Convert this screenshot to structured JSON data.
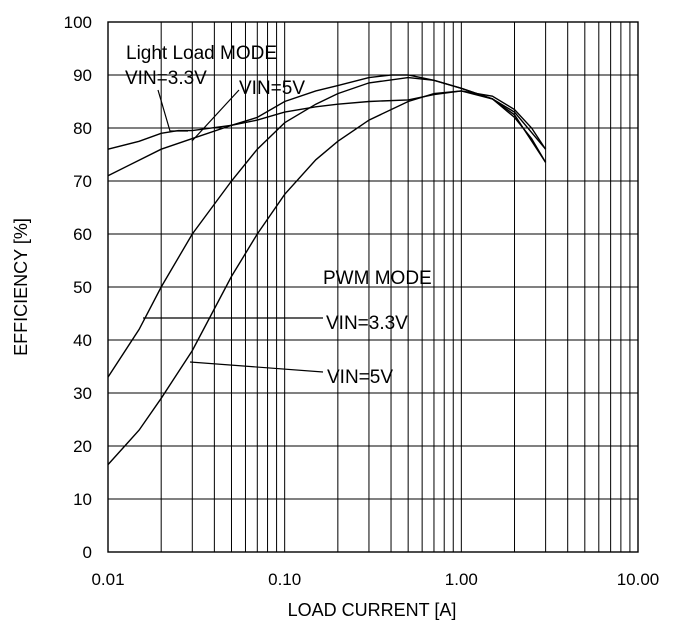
{
  "chart_data": {
    "type": "line",
    "title": "",
    "xlabel": "LOAD CURRENT [A]",
    "ylabel": "EFFICIENCY [%]",
    "xscale": "log",
    "xlim": [
      0.01,
      10
    ],
    "ylim": [
      0,
      100
    ],
    "grid": true,
    "x_tick_labels": [
      "0.01",
      "0.10",
      "1.00",
      "10.00"
    ],
    "y_tick_labels": [
      "0",
      "10",
      "20",
      "30",
      "40",
      "50",
      "60",
      "70",
      "80",
      "90",
      "100"
    ],
    "annotations": [
      {
        "id": "lightload",
        "text": "Light Load MODE"
      },
      {
        "id": "ll33",
        "text": "VIN=3.3V"
      },
      {
        "id": "ll5",
        "text": "VIN=5V"
      },
      {
        "id": "pwm",
        "text": "PWM MODE"
      },
      {
        "id": "pwm33",
        "text": "VIN=3.3V"
      },
      {
        "id": "pwm5",
        "text": "VIN=5V"
      }
    ],
    "series": [
      {
        "x": [
          0.01,
          0.015,
          0.02,
          0.025,
          0.03,
          0.05,
          0.07,
          0.1,
          0.15,
          0.2,
          0.3,
          0.5,
          0.7,
          1.0,
          1.5,
          2.0,
          2.5,
          3.0
        ],
        "y": [
          76,
          77.5,
          79,
          79.5,
          79.5,
          80.5,
          81.5,
          83,
          84,
          84.5,
          85,
          85.3,
          86.3,
          87,
          86,
          83.5,
          80,
          76
        ]
      },
      {
        "x": [
          0.01,
          0.02,
          0.03,
          0.05,
          0.07,
          0.1,
          0.15,
          0.2,
          0.3,
          0.4,
          0.5,
          0.7,
          1.0,
          1.5,
          2.0,
          2.5,
          3.0
        ],
        "y": [
          71,
          76,
          78,
          80.5,
          82,
          85,
          87,
          88,
          89.5,
          90,
          90,
          89,
          87.5,
          85.5,
          82,
          78,
          73.5
        ]
      },
      {
        "x": [
          0.01,
          0.015,
          0.02,
          0.03,
          0.05,
          0.07,
          0.1,
          0.15,
          0.2,
          0.3,
          0.5,
          0.7,
          1.0,
          1.5,
          2.0,
          3.0
        ],
        "y": [
          33,
          42,
          50,
          60,
          70,
          76,
          81,
          84.5,
          86.5,
          88.5,
          89.5,
          89,
          87.5,
          85.5,
          83,
          76
        ]
      },
      {
        "x": [
          0.01,
          0.015,
          0.02,
          0.03,
          0.05,
          0.07,
          0.1,
          0.15,
          0.2,
          0.3,
          0.5,
          0.7,
          1.0,
          1.5,
          2.0,
          3.0
        ],
        "y": [
          16.5,
          23,
          29,
          38,
          52,
          60,
          67.5,
          74,
          77.5,
          81.5,
          85,
          86.5,
          87,
          85.5,
          82.5,
          73.5
        ]
      }
    ]
  }
}
